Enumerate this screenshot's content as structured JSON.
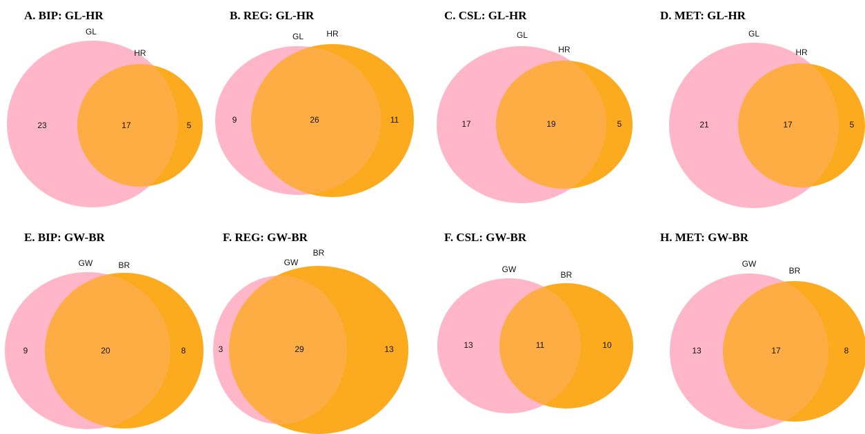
{
  "colors": {
    "left_set": "#FFB6C8",
    "right_set": "#FDAB1E",
    "background": "#FFFFFF"
  },
  "panels": [
    {
      "title": "A. BIP: GL-HR",
      "left_label": "GL",
      "right_label": "HR",
      "left_only": "23",
      "both": "17",
      "right_only": "5"
    },
    {
      "title": "B. REG: GL-HR",
      "left_label": "GL",
      "right_label": "HR",
      "left_only": "9",
      "both": "26",
      "right_only": "11"
    },
    {
      "title": "C. CSL: GL-HR",
      "left_label": "GL",
      "right_label": "HR",
      "left_only": "17",
      "both": "19",
      "right_only": "5"
    },
    {
      "title": "D. MET: GL-HR",
      "left_label": "GL",
      "right_label": "HR",
      "left_only": "21",
      "both": "17",
      "right_only": "5"
    },
    {
      "title": "E. BIP: GW-BR",
      "left_label": "GW",
      "right_label": "BR",
      "left_only": "9",
      "both": "20",
      "right_only": "8"
    },
    {
      "title": "F. REG: GW-BR",
      "left_label": "GW",
      "right_label": "BR",
      "left_only": "3",
      "both": "29",
      "right_only": "13"
    },
    {
      "title": "F. CSL: GW-BR",
      "left_label": "GW",
      "right_label": "BR",
      "left_only": "13",
      "both": "11",
      "right_only": "10"
    },
    {
      "title": "H. MET: GW-BR",
      "left_label": "GW",
      "right_label": "BR",
      "left_only": "13",
      "both": "17",
      "right_only": "8"
    }
  ]
}
